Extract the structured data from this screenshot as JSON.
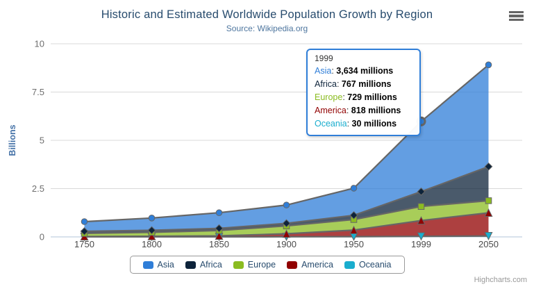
{
  "header": {
    "title": "Historic and Estimated Worldwide Population Growth by Region",
    "subtitle": "Source: Wikipedia.org"
  },
  "chart_data": {
    "type": "area",
    "stacking": "normal",
    "title": "Historic and Estimated Worldwide Population Growth by Region",
    "subtitle": "Source: Wikipedia.org",
    "categories": [
      "1750",
      "1800",
      "1850",
      "1900",
      "1950",
      "1999",
      "2050"
    ],
    "series": [
      {
        "name": "Asia",
        "color": "#2f7ed8",
        "marker": "circle",
        "values": [
          502,
          635,
          809,
          947,
          1402,
          3634,
          5268
        ]
      },
      {
        "name": "Africa",
        "color": "#0d233a",
        "marker": "diamond",
        "values": [
          106,
          107,
          111,
          133,
          221,
          767,
          1766
        ]
      },
      {
        "name": "Europe",
        "color": "#8bbc21",
        "marker": "square",
        "values": [
          163,
          203,
          276,
          408,
          547,
          729,
          628
        ]
      },
      {
        "name": "America",
        "color": "#910000",
        "marker": "triangle",
        "values": [
          18,
          31,
          54,
          156,
          339,
          818,
          1201
        ]
      },
      {
        "name": "Oceania",
        "color": "#1aadce",
        "marker": "triangle-down",
        "values": [
          2,
          2,
          2,
          6,
          13,
          30,
          46
        ]
      }
    ],
    "stack_order_bottom_to_top": [
      "Oceania",
      "America",
      "Europe",
      "Africa",
      "Asia"
    ],
    "unit": "millions",
    "ylabel": "Billions",
    "ylim": [
      0,
      10
    ],
    "yticks": [
      0,
      2.5,
      5,
      7.5,
      10
    ],
    "grid": "horizontal-only",
    "legend_position": "bottom",
    "fill_opacity": 0.75,
    "line_color": "#666666",
    "axis_line_color": "#c0d0e0",
    "grid_color": "#d8d8d8",
    "hover_point": {
      "series": "Asia",
      "category": "1999"
    }
  },
  "tooltip": {
    "header": "1999",
    "rows": [
      {
        "name": "Asia",
        "value": "3,634 millions"
      },
      {
        "name": "Africa",
        "value": "767 millions"
      },
      {
        "name": "Europe",
        "value": "729 millions"
      },
      {
        "name": "America",
        "value": "818 millions"
      },
      {
        "name": "Oceania",
        "value": "30 millions"
      }
    ]
  },
  "credits": "Highcharts.com",
  "icons": {
    "menu": "hamburger-icon"
  }
}
